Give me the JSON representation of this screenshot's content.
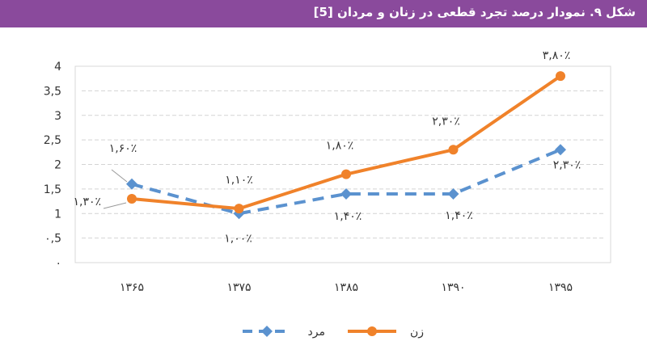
{
  "figure_title": "شکل ۹. نمودار درصد تجرد قطعی در زنان و مردان [5]",
  "colors": {
    "title_bar": "#8a4a9c",
    "female": "#f0822a",
    "male": "#5b92cf",
    "grid": "#d4d4d4"
  },
  "chart_data": {
    "type": "line",
    "categories": [
      "۱۳۶۵",
      "۱۳۷۵",
      "۱۳۸۵",
      "۱۳۹۰",
      "۱۳۹۵"
    ],
    "ylim": [
      0,
      4
    ],
    "yticks": [
      {
        "value": 0,
        "label": "۰"
      },
      {
        "value": 0.5,
        "label": "۰,5"
      },
      {
        "value": 1,
        "label": "1"
      },
      {
        "value": 1.5,
        "label": "1,5"
      },
      {
        "value": 2,
        "label": "2"
      },
      {
        "value": 2.5,
        "label": "2,5"
      },
      {
        "value": 3,
        "label": "3"
      },
      {
        "value": 3.5,
        "label": "3,5"
      },
      {
        "value": 4,
        "label": "4"
      }
    ],
    "grid": true,
    "legend_position": "bottom",
    "series": [
      {
        "name": "زن",
        "style": "solid",
        "values": [
          1.3,
          1.1,
          1.8,
          2.3,
          3.8
        ],
        "labels": [
          "۱,۳۰٪",
          "۱,۱۰٪",
          "۱,۸۰٪",
          "۲,۳۰٪",
          "۳,۸۰٪"
        ]
      },
      {
        "name": "مرد",
        "style": "dashed",
        "values": [
          1.6,
          1.0,
          1.4,
          1.4,
          2.3
        ],
        "labels": [
          "۱,۶۰٪",
          "۱,۰۰٪",
          "۱,۴۰٪",
          "۱,۴۰٪",
          "۲,۳۰٪"
        ]
      }
    ]
  }
}
